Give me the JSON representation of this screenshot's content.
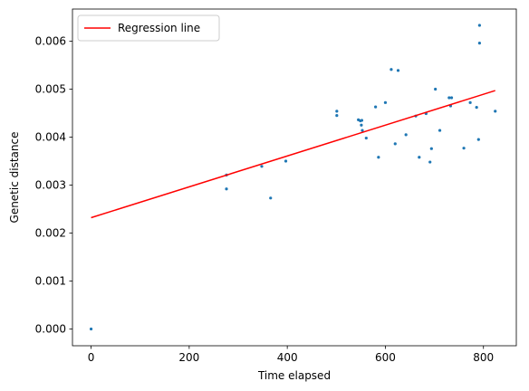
{
  "chart_data": {
    "type": "scatter",
    "title": "",
    "xlabel": "Time elapsed",
    "ylabel": "Genetic distance",
    "xlim": [
      -38,
      867
    ],
    "ylim": [
      -0.00035,
      0.00667
    ],
    "xticks": [
      0,
      200,
      400,
      600,
      800
    ],
    "yticks": [
      0.0,
      0.001,
      0.002,
      0.003,
      0.004,
      0.005,
      0.006
    ],
    "xtick_labels": [
      "0",
      "200",
      "400",
      "600",
      "800"
    ],
    "ytick_labels": [
      "0.000",
      "0.001",
      "0.002",
      "0.003",
      "0.004",
      "0.005",
      "0.006"
    ],
    "grid": false,
    "legend": {
      "placement": "top-left",
      "entries": [
        "Regression line"
      ]
    },
    "series": [
      {
        "kind": "points",
        "color": "#1f77b4",
        "x": [
          0,
          276,
          276,
          348,
          366,
          397,
          501,
          501,
          545,
          549,
          551,
          552,
          553,
          561,
          580,
          586,
          600,
          612,
          620,
          626,
          642,
          662,
          669,
          683,
          691,
          694,
          702,
          711,
          730,
          733,
          735,
          760,
          773,
          786,
          790,
          792,
          792,
          824
        ],
        "y": [
          0.0,
          0.00321,
          0.00292,
          0.00339,
          0.00273,
          0.0035,
          0.00454,
          0.00445,
          0.00436,
          0.00434,
          0.00425,
          0.00435,
          0.00414,
          0.00398,
          0.00463,
          0.00358,
          0.00472,
          0.00541,
          0.00386,
          0.00539,
          0.00405,
          0.00444,
          0.00358,
          0.00449,
          0.00348,
          0.00376,
          0.005,
          0.00414,
          0.00482,
          0.00465,
          0.00482,
          0.00377,
          0.00472,
          0.00462,
          0.00395,
          0.00596,
          0.00633,
          0.00454
        ]
      },
      {
        "name": "Regression line",
        "kind": "line",
        "color": "#ff0000",
        "x": [
          0,
          824
        ],
        "y": [
          0.00232,
          0.00497
        ]
      }
    ]
  }
}
